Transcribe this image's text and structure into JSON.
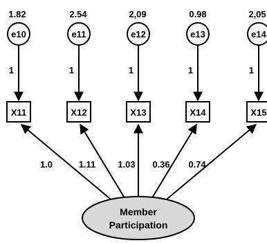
{
  "latent": {
    "line1": "Member",
    "line2": "Participation"
  },
  "error_terms": [
    {
      "name": "e10",
      "variance": "1.82",
      "path": "1"
    },
    {
      "name": "e11",
      "variance": "2.54",
      "path": "1"
    },
    {
      "name": "e12",
      "variance": "2,09",
      "path": "1"
    },
    {
      "name": "e13",
      "variance": "0.98",
      "path": "1"
    },
    {
      "name": "e14",
      "variance": "2,05",
      "path": "1"
    }
  ],
  "indicators": [
    {
      "name": "X11",
      "loading": "1.0"
    },
    {
      "name": "X12",
      "loading": "1.11"
    },
    {
      "name": "X13",
      "loading": "1.03"
    },
    {
      "name": "X14",
      "loading": "0.36"
    },
    {
      "name": "X15",
      "loading": "0.74"
    }
  ],
  "colors": {
    "latent_fill": "#d9d9d9",
    "stroke": "#000000"
  }
}
